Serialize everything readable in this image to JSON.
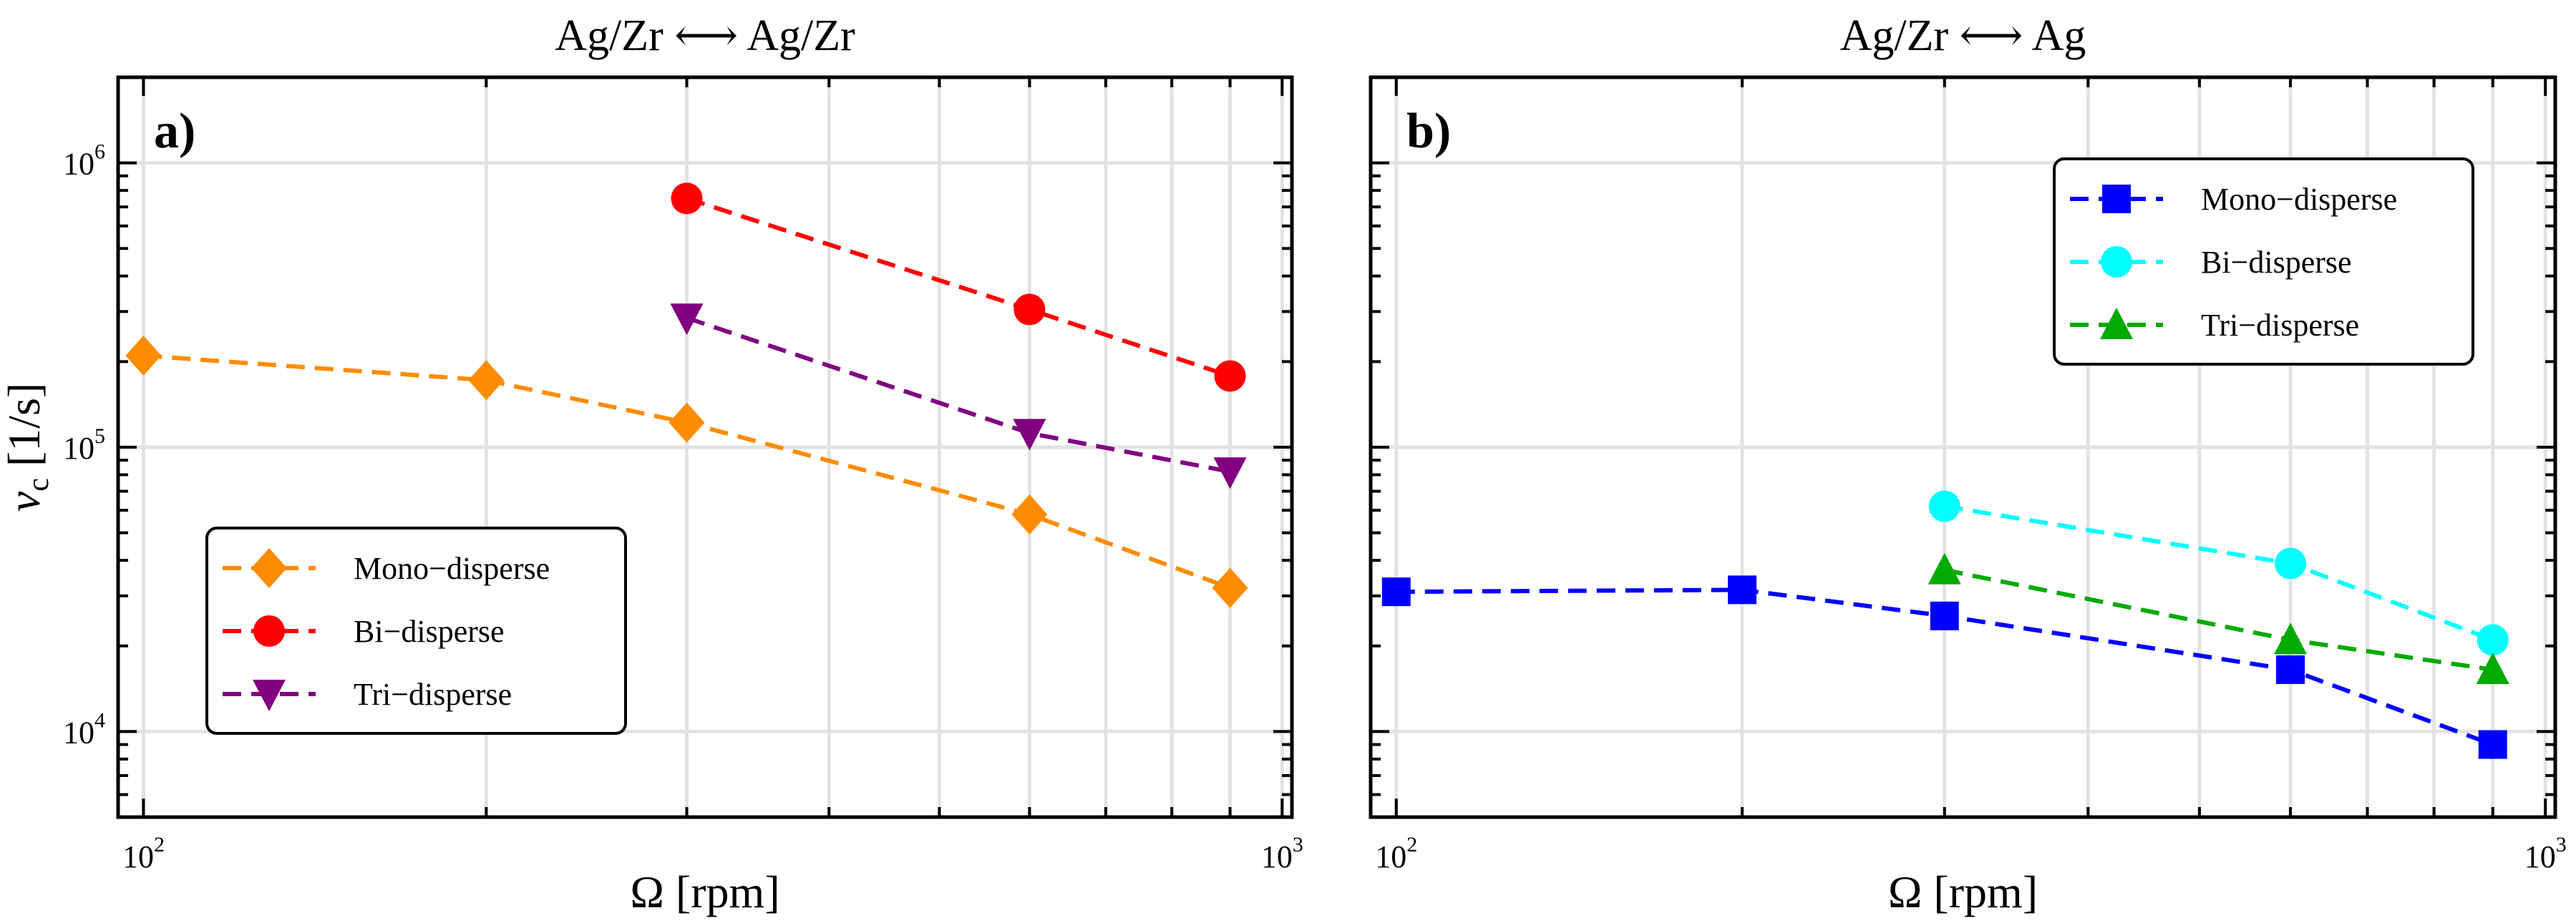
{
  "chart_data": [
    {
      "type": "line",
      "panel_label": "a)",
      "title": "Ag/Zr ⟷ Ag/Zr",
      "xlabel": "Ω [rpm]",
      "ylabel": "ν",
      "ylabel_sub": "c",
      "ylabel_unit": " [1/s]",
      "xscale": "log",
      "yscale": "log",
      "xlim": [
        95,
        1020
      ],
      "ylim": [
        5000,
        2000000
      ],
      "xticks": [
        {
          "value": 100,
          "base": "10",
          "exp": "2"
        },
        {
          "value": 1000,
          "base": "10",
          "exp": "3"
        }
      ],
      "yticks": [
        {
          "value": 10000,
          "base": "10",
          "exp": "4"
        },
        {
          "value": 100000,
          "base": "10",
          "exp": "5"
        },
        {
          "value": 1000000,
          "base": "10",
          "exp": "6"
        }
      ],
      "grid": true,
      "legend_position": "lower-left",
      "series": [
        {
          "name": "Mono−disperse",
          "color": "#ff8c00",
          "marker": "diamond",
          "x": [
            100,
            200,
            300,
            600,
            900
          ],
          "y": [
            210000,
            172000,
            122000,
            58000,
            32000
          ]
        },
        {
          "name": "Bi−disperse",
          "color": "#ff0000",
          "marker": "circle",
          "x": [
            300,
            600,
            900
          ],
          "y": [
            750000,
            305000,
            178000
          ]
        },
        {
          "name": "Tri−disperse",
          "color": "#800080",
          "marker": "triangle-down",
          "x": [
            300,
            600,
            900
          ],
          "y": [
            285000,
            112000,
            82000
          ]
        }
      ]
    },
    {
      "type": "line",
      "panel_label": "b)",
      "title": "Ag/Zr ⟷ Ag",
      "xlabel": "Ω [rpm]",
      "xscale": "log",
      "yscale": "log",
      "xlim": [
        95,
        1020
      ],
      "ylim": [
        5000,
        2000000
      ],
      "xticks": [
        {
          "value": 100,
          "base": "10",
          "exp": "2"
        },
        {
          "value": 1000,
          "base": "10",
          "exp": "3"
        }
      ],
      "yticks": [
        {
          "value": 10000
        },
        {
          "value": 100000
        },
        {
          "value": 1000000
        }
      ],
      "grid": true,
      "legend_position": "upper-right",
      "series": [
        {
          "name": "Mono−disperse",
          "color": "#0000ff",
          "marker": "square",
          "x": [
            100,
            200,
            300,
            600,
            900
          ],
          "y": [
            31000,
            31500,
            25500,
            16500,
            9000
          ]
        },
        {
          "name": "Bi−disperse",
          "color": "#00ffff",
          "marker": "circle",
          "x": [
            300,
            600,
            900
          ],
          "y": [
            62000,
            39000,
            21000
          ]
        },
        {
          "name": "Tri−disperse",
          "color": "#00aa00",
          "marker": "triangle-up",
          "x": [
            300,
            600,
            900
          ],
          "y": [
            37000,
            21000,
            16500
          ]
        }
      ]
    }
  ]
}
